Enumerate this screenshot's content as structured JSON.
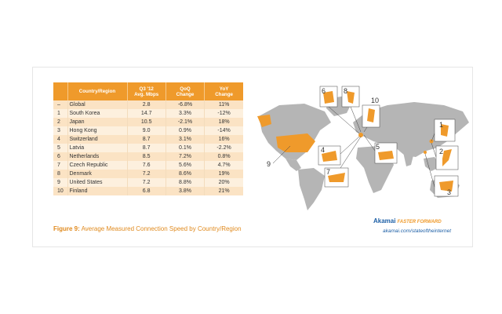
{
  "chart_data": {
    "type": "table",
    "columns": [
      "",
      "Country/Region",
      "Q3 '12 Avg. Mbps",
      "QoQ Change",
      "YoY Change"
    ],
    "rows": [
      {
        "rank": "–",
        "country": "Global",
        "avg_mbps": "2.8",
        "qoq": "-6.8%",
        "yoy": "11%"
      },
      {
        "rank": "1",
        "country": "South Korea",
        "avg_mbps": "14.7",
        "qoq": "3.3%",
        "yoy": "-12%"
      },
      {
        "rank": "2",
        "country": "Japan",
        "avg_mbps": "10.5",
        "qoq": "-2.1%",
        "yoy": "18%"
      },
      {
        "rank": "3",
        "country": "Hong Kong",
        "avg_mbps": "9.0",
        "qoq": "0.9%",
        "yoy": "-14%"
      },
      {
        "rank": "4",
        "country": "Switzerland",
        "avg_mbps": "8.7",
        "qoq": "3.1%",
        "yoy": "16%"
      },
      {
        "rank": "5",
        "country": "Latvia",
        "avg_mbps": "8.7",
        "qoq": "0.1%",
        "yoy": "-2.2%"
      },
      {
        "rank": "6",
        "country": "Netherlands",
        "avg_mbps": "8.5",
        "qoq": "7.2%",
        "yoy": "0.8%"
      },
      {
        "rank": "7",
        "country": "Czech Republic",
        "avg_mbps": "7.6",
        "qoq": "5.6%",
        "yoy": "4.7%"
      },
      {
        "rank": "8",
        "country": "Denmark",
        "avg_mbps": "7.2",
        "qoq": "8.6%",
        "yoy": "19%"
      },
      {
        "rank": "9",
        "country": "United States",
        "avg_mbps": "7.2",
        "qoq": "8.8%",
        "yoy": "20%"
      },
      {
        "rank": "10",
        "country": "Finland",
        "avg_mbps": "6.8",
        "qoq": "3.8%",
        "yoy": "21%"
      }
    ],
    "title": "Figure 9: Average Measured Connection Speed by Country/Region"
  },
  "header": {
    "country": "Country/Region",
    "avg_line1": "Q3 '12",
    "avg_line2": "Avg. Mbps",
    "qoq_line1": "QoQ",
    "qoq_line2": "Change",
    "yoy_line1": "YoY",
    "yoy_line2": "Change"
  },
  "caption": {
    "figure": "Figure 9:",
    "text": "Average Measured Connection Speed by Country/Region"
  },
  "map": {
    "callouts": [
      "1",
      "2",
      "3",
      "4",
      "5",
      "6",
      "7",
      "8",
      "9",
      "10"
    ],
    "land_color": "#b5b5b5",
    "highlight_color": "#ef9a2b"
  },
  "brand": {
    "name": "Akamai",
    "tagline": "FASTER FORWARD",
    "url": "akamai.com/stateoftheinternet"
  }
}
